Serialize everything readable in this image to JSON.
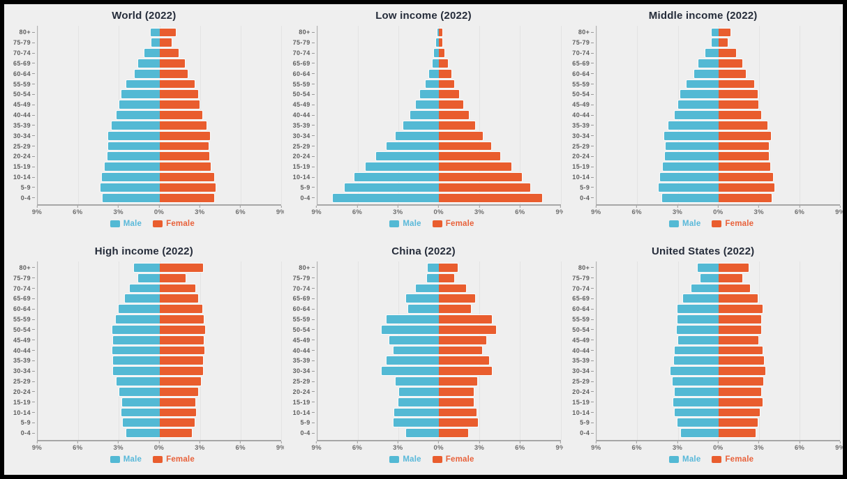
{
  "page": {
    "frame_color": "#000000",
    "background": "#efefef"
  },
  "colors": {
    "male": "#53B9D4",
    "female": "#E95D2E",
    "male_label_text": "#58B8D9",
    "female_label_text": "#E8613A",
    "title_text": "#252C3A",
    "axis_text": "#6E6E6E",
    "age_label_text": "#5D5D5D",
    "gridline": "#E3E3E3",
    "axis_line": "#A6A6A6"
  },
  "axis": {
    "x_tick_labels": [
      "9%",
      "6%",
      "3%",
      "0%",
      "3%",
      "6%",
      "9%"
    ],
    "x_max_percent": 9,
    "age_groups_top_to_bottom": [
      "80+",
      "75-79",
      "70-74",
      "65-69",
      "60-64",
      "55-59",
      "50-54",
      "45-49",
      "40-44",
      "35-39",
      "30-34",
      "25-29",
      "20-24",
      "15-19",
      "10-14",
      "5-9",
      "0-4"
    ]
  },
  "legend": {
    "male_label": "Male",
    "female_label": "Female"
  },
  "chart_data": [
    {
      "type": "bar",
      "subtype": "population-pyramid",
      "title": "World (2022)",
      "xlim": [
        -9,
        9
      ],
      "x_unit": "% of population",
      "grid": true,
      "legend_position": "bottom",
      "categories_top_to_bottom": [
        "80+",
        "75-79",
        "70-74",
        "65-69",
        "60-64",
        "55-59",
        "50-54",
        "45-49",
        "40-44",
        "35-39",
        "30-34",
        "25-29",
        "20-24",
        "15-19",
        "10-14",
        "5-9",
        "0-4"
      ],
      "series": [
        {
          "name": "Male",
          "side": "left",
          "values": [
            0.7,
            0.65,
            1.15,
            1.65,
            1.9,
            2.5,
            2.85,
            3.0,
            3.25,
            3.6,
            3.85,
            3.85,
            3.9,
            4.1,
            4.3,
            4.4,
            4.25
          ]
        },
        {
          "name": "Female",
          "side": "right",
          "values": [
            1.25,
            0.95,
            1.45,
            1.95,
            2.15,
            2.65,
            2.9,
            3.0,
            3.2,
            3.55,
            3.8,
            3.7,
            3.75,
            3.85,
            4.1,
            4.2,
            4.1
          ]
        }
      ]
    },
    {
      "type": "bar",
      "subtype": "population-pyramid",
      "title": "Low income (2022)",
      "xlim": [
        -9,
        9
      ],
      "x_unit": "% of population",
      "grid": true,
      "legend_position": "bottom",
      "categories_top_to_bottom": [
        "80+",
        "75-79",
        "70-74",
        "65-69",
        "60-64",
        "55-59",
        "50-54",
        "45-49",
        "40-44",
        "35-39",
        "30-34",
        "25-29",
        "20-24",
        "15-19",
        "10-14",
        "5-9",
        "0-4"
      ],
      "series": [
        {
          "name": "Male",
          "side": "left",
          "values": [
            0.15,
            0.25,
            0.4,
            0.55,
            0.8,
            1.05,
            1.45,
            1.75,
            2.15,
            2.7,
            3.25,
            3.95,
            4.7,
            5.5,
            6.3,
            7.0,
            7.9
          ]
        },
        {
          "name": "Female",
          "side": "right",
          "values": [
            0.3,
            0.3,
            0.45,
            0.7,
            0.95,
            1.2,
            1.55,
            1.85,
            2.25,
            2.75,
            3.3,
            3.9,
            4.6,
            5.4,
            6.2,
            6.8,
            7.7
          ]
        }
      ]
    },
    {
      "type": "bar",
      "subtype": "population-pyramid",
      "title": "Middle income (2022)",
      "xlim": [
        -9,
        9
      ],
      "x_unit": "% of population",
      "grid": true,
      "legend_position": "bottom",
      "categories_top_to_bottom": [
        "80+",
        "75-79",
        "70-74",
        "65-69",
        "60-64",
        "55-59",
        "50-54",
        "45-49",
        "40-44",
        "35-39",
        "30-34",
        "25-29",
        "20-24",
        "15-19",
        "10-14",
        "5-9",
        "0-4"
      ],
      "series": [
        {
          "name": "Male",
          "side": "left",
          "values": [
            0.55,
            0.55,
            1.0,
            1.55,
            1.85,
            2.4,
            2.9,
            3.05,
            3.3,
            3.75,
            4.05,
            3.95,
            4.0,
            4.15,
            4.4,
            4.5,
            4.2
          ]
        },
        {
          "name": "Female",
          "side": "right",
          "values": [
            0.95,
            0.75,
            1.35,
            1.8,
            2.05,
            2.7,
            2.95,
            3.0,
            3.2,
            3.65,
            3.95,
            3.75,
            3.75,
            3.9,
            4.1,
            4.2,
            4.0
          ]
        }
      ]
    },
    {
      "type": "bar",
      "subtype": "population-pyramid",
      "title": "High income (2022)",
      "xlim": [
        -9,
        9
      ],
      "x_unit": "% of population",
      "grid": true,
      "legend_position": "bottom",
      "categories_top_to_bottom": [
        "80+",
        "75-79",
        "70-74",
        "65-69",
        "60-64",
        "55-59",
        "50-54",
        "45-49",
        "40-44",
        "35-39",
        "30-34",
        "25-29",
        "20-24",
        "15-19",
        "10-14",
        "5-9",
        "0-4"
      ],
      "series": [
        {
          "name": "Male",
          "side": "left",
          "values": [
            1.95,
            1.6,
            2.25,
            2.6,
            3.05,
            3.3,
            3.55,
            3.5,
            3.55,
            3.5,
            3.5,
            3.25,
            3.0,
            2.8,
            2.85,
            2.75,
            2.5
          ]
        },
        {
          "name": "Female",
          "side": "right",
          "values": [
            3.25,
            2.0,
            2.7,
            2.9,
            3.2,
            3.35,
            3.45,
            3.35,
            3.4,
            3.25,
            3.3,
            3.1,
            2.9,
            2.7,
            2.75,
            2.65,
            2.45
          ]
        }
      ]
    },
    {
      "type": "bar",
      "subtype": "population-pyramid",
      "title": "China (2022)",
      "xlim": [
        -9,
        9
      ],
      "x_unit": "% of population",
      "grid": true,
      "legend_position": "bottom",
      "categories_top_to_bottom": [
        "80+",
        "75-79",
        "70-74",
        "65-69",
        "60-64",
        "55-59",
        "50-54",
        "45-49",
        "40-44",
        "35-39",
        "30-34",
        "25-29",
        "20-24",
        "15-19",
        "10-14",
        "5-9",
        "0-4"
      ],
      "series": [
        {
          "name": "Male",
          "side": "left",
          "values": [
            0.9,
            0.95,
            1.75,
            2.5,
            2.35,
            3.95,
            4.3,
            3.7,
            3.4,
            3.95,
            4.3,
            3.25,
            3.0,
            3.05,
            3.35,
            3.4,
            2.5
          ]
        },
        {
          "name": "Female",
          "side": "right",
          "values": [
            1.45,
            1.2,
            2.05,
            2.75,
            2.4,
            3.95,
            4.25,
            3.55,
            3.25,
            3.75,
            3.95,
            2.9,
            2.6,
            2.6,
            2.85,
            2.95,
            2.2
          ]
        }
      ]
    },
    {
      "type": "bar",
      "subtype": "population-pyramid",
      "title": "United States (2022)",
      "xlim": [
        -9,
        9
      ],
      "x_unit": "% of population",
      "grid": true,
      "legend_position": "bottom",
      "categories_top_to_bottom": [
        "80+",
        "75-79",
        "70-74",
        "65-69",
        "60-64",
        "55-59",
        "50-54",
        "45-49",
        "40-44",
        "35-39",
        "30-34",
        "25-29",
        "20-24",
        "15-19",
        "10-14",
        "5-9",
        "0-4"
      ],
      "series": [
        {
          "name": "Male",
          "side": "left",
          "values": [
            1.6,
            1.4,
            2.05,
            2.65,
            3.1,
            3.1,
            3.15,
            3.05,
            3.3,
            3.35,
            3.6,
            3.45,
            3.3,
            3.4,
            3.3,
            3.1,
            2.85
          ]
        },
        {
          "name": "Female",
          "side": "right",
          "values": [
            2.3,
            1.8,
            2.4,
            2.95,
            3.3,
            3.2,
            3.2,
            3.0,
            3.3,
            3.4,
            3.5,
            3.35,
            3.2,
            3.3,
            3.1,
            2.95,
            2.8
          ]
        }
      ]
    }
  ]
}
